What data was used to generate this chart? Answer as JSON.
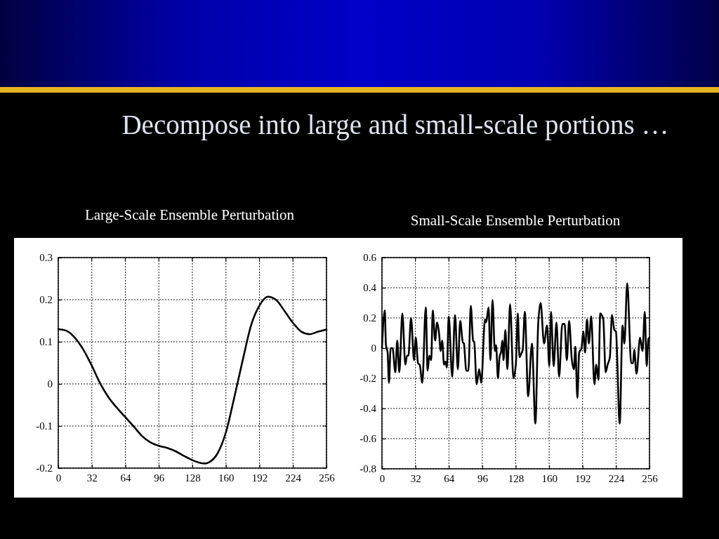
{
  "chart_data": [
    {
      "type": "line",
      "title": "Large-Scale Ensemble Perturbation",
      "annotations": [
        "Decompose into large and small-scale portions …"
      ],
      "x": [
        0,
        8,
        16,
        24,
        32,
        40,
        48,
        56,
        64,
        72,
        80,
        88,
        96,
        104,
        112,
        120,
        128,
        136,
        140,
        144,
        152,
        160,
        168,
        176,
        184,
        192,
        200,
        208,
        216,
        224,
        232,
        240,
        248,
        256
      ],
      "series": [
        {
          "color": "#000000",
          "values": [
            0.13,
            0.126,
            0.109,
            0.081,
            0.043,
            0.001,
            -0.032,
            -0.057,
            -0.079,
            -0.101,
            -0.124,
            -0.139,
            -0.147,
            -0.152,
            -0.16,
            -0.171,
            -0.181,
            -0.188,
            -0.189,
            -0.186,
            -0.165,
            -0.115,
            -0.032,
            0.056,
            0.139,
            0.186,
            0.207,
            0.199,
            0.173,
            0.145,
            0.124,
            0.118,
            0.124,
            0.129
          ]
        }
      ],
      "xlim": [
        0,
        256
      ],
      "xticks": [
        0,
        32,
        64,
        96,
        128,
        160,
        192,
        224,
        256
      ],
      "ylim": [
        -0.2,
        0.3
      ],
      "yticks": [
        -0.2,
        -0.1,
        0,
        0.1,
        0.2,
        0.3
      ],
      "grid": true
    },
    {
      "type": "line",
      "title": "Small-Scale Ensemble Perturbation",
      "x": [
        0,
        2.7,
        3.8,
        5.4,
        6.7,
        8.3,
        10.1,
        12.8,
        14.6,
        16.6,
        19.5,
        22.4,
        24,
        25.3,
        27.8,
        30.7,
        32.3,
        34.5,
        36.1,
        38.6,
        41.9,
        43.7,
        45.3,
        47.1,
        48.6,
        50.9,
        52.7,
        54.9,
        56,
        57.6,
        59.4,
        60.7,
        62.1,
        63.9,
        67.2,
        69.9,
        72.6,
        74.9,
        77.3,
        78.4,
        80.7,
        82.7,
        85,
        87.2,
        88.3,
        90.6,
        93,
        95,
        98.6,
        99.7,
        102,
        103.8,
        105.8,
        108,
        109.2,
        111,
        112.5,
        114.1,
        115.2,
        116.3,
        118.1,
        120,
        122.6,
        125.8,
        128.1,
        130,
        131.6,
        133.1,
        134.7,
        136.7,
        139.9,
        143.5,
        146.8,
        149.5,
        151.8,
        155.1,
        158,
        160.1,
        161.8,
        164.3,
        167,
        169.5,
        172.6,
        174.8,
        176.9,
        179.1,
        181.6,
        183.8,
        185,
        187,
        188.7,
        191,
        192.6,
        194.4,
        196.2,
        198,
        200.2,
        203.3,
        205.1,
        207.1,
        208.9,
        211.8,
        214,
        215.9,
        218.1,
        220.1,
        222.4,
        223.9,
        227.5,
        230.2,
        232,
        234.7,
        238.5,
        240.3,
        241.4,
        243.6,
        247,
        249.3,
        251.5,
        253.3,
        254.9,
        256
      ],
      "series": [
        {
          "color": "#000000",
          "values": [
            0,
            0.25,
            0.02,
            -0.03,
            -0.23,
            0,
            0,
            -0.16,
            0.05,
            -0.16,
            0.23,
            -0.11,
            -0.05,
            -0.05,
            0.2,
            -0.08,
            0.07,
            -0.1,
            -0.11,
            -0.23,
            0.27,
            -0.15,
            -0.05,
            -0.08,
            0.25,
            0.05,
            0.17,
            0.08,
            -0.02,
            0.05,
            -0.11,
            -0.09,
            -0.13,
            0.21,
            -0.19,
            0.22,
            -0.14,
            0.18,
            0.04,
            0.03,
            -0.15,
            -0.15,
            0.28,
            0.05,
            0.04,
            -0.24,
            -0.14,
            -0.23,
            0.19,
            0.17,
            0.27,
            -0.08,
            0.32,
            -0.02,
            0.02,
            -0.2,
            -0.06,
            -0.02,
            0.05,
            -0.08,
            0.12,
            -0.14,
            0.29,
            -0.2,
            -0.11,
            0.23,
            -0.06,
            -0.04,
            -0.01,
            0.24,
            -0.32,
            0.03,
            -0.5,
            0.16,
            0.3,
            0.03,
            0.15,
            -0.12,
            0.24,
            -0.12,
            0.17,
            -0.19,
            0.16,
            0.16,
            -0.08,
            0.18,
            -0.07,
            -0.14,
            0.01,
            -0.33,
            -0.03,
            0,
            0.11,
            -0.03,
            0.19,
            0.03,
            0.21,
            -0.24,
            -0.11,
            -0.21,
            0.23,
            0.19,
            -0.16,
            -0.11,
            -0.06,
            0.22,
            0.12,
            0.11,
            -0.5,
            0.15,
            0.03,
            0.43,
            -0.1,
            -0.1,
            -0.01,
            -0.17,
            0.07,
            -0.02,
            0.24,
            -0.12,
            0.06,
            0.07
          ]
        }
      ],
      "xlim": [
        0,
        256
      ],
      "xticks": [
        0,
        32,
        64,
        96,
        128,
        160,
        192,
        224,
        256
      ],
      "ylim": [
        -0.8,
        0.6
      ],
      "yticks": [
        -0.8,
        -0.6,
        -0.4,
        -0.2,
        0,
        0.2,
        0.4,
        0.6
      ],
      "grid": true
    }
  ]
}
